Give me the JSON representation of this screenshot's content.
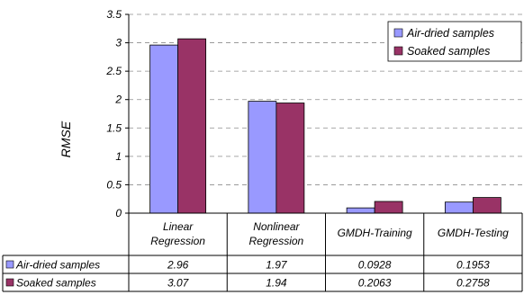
{
  "chart_data": {
    "type": "bar",
    "title": "",
    "xlabel": "",
    "ylabel": "RMSE",
    "ylim": [
      0,
      3.5
    ],
    "yticks": [
      "0",
      "0.5",
      "1",
      "1.5",
      "2",
      "2.5",
      "3",
      "3.5"
    ],
    "grid": true,
    "legend_position": "top-right",
    "categories": [
      [
        "Linear",
        "Regression"
      ],
      [
        "Nonlinear",
        "Regression"
      ],
      [
        "GMDH-Training"
      ],
      [
        "GMDH-Testing"
      ]
    ],
    "series": [
      {
        "name": "Air-dried samples",
        "color": "#9999ff",
        "values": [
          2.96,
          1.97,
          0.0928,
          0.1953
        ],
        "labels": [
          "2.96",
          "1.97",
          "0.0928",
          "0.1953"
        ]
      },
      {
        "name": "Soaked samples",
        "color": "#993366",
        "values": [
          3.07,
          1.94,
          0.2063,
          0.2758
        ],
        "labels": [
          "3.07",
          "1.94",
          "0.2063",
          "0.2758"
        ]
      }
    ]
  }
}
